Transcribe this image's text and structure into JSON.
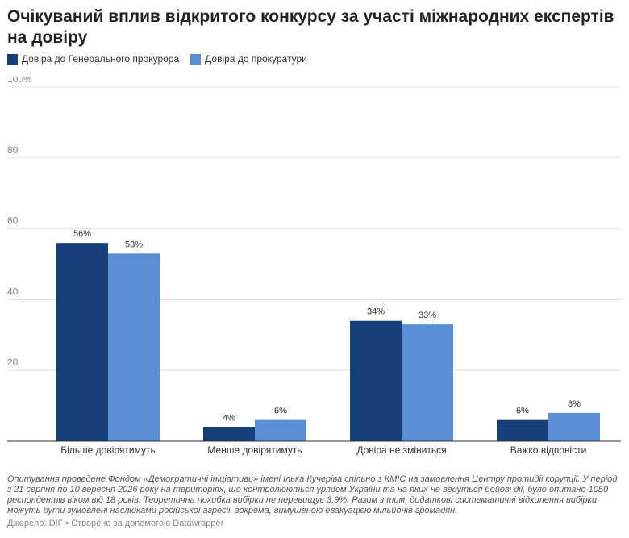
{
  "title": "Очікуваний вплив відкритого конкурсу за участі міжнародних експертів на довіру",
  "legend": [
    {
      "label": "Довіра до Генерального прокурора",
      "color": "#163f7a"
    },
    {
      "label": "Довіра до прокуратури",
      "color": "#5a8fd6"
    }
  ],
  "chart_data": {
    "type": "bar",
    "categories": [
      "Більше довірятимуть",
      "Менше довірятимуть",
      "Довіра не зміниться",
      "Важко відповісти"
    ],
    "series": [
      {
        "name": "Довіра до Генерального прокурора",
        "values": [
          56,
          4,
          34,
          6
        ],
        "labels": [
          "56%",
          "4%",
          "34%",
          "6%"
        ],
        "color": "#163f7a"
      },
      {
        "name": "Довіра до прокуратури",
        "values": [
          53,
          6,
          33,
          8
        ],
        "labels": [
          "53%",
          "6%",
          "33%",
          "8%"
        ],
        "color": "#5a8fd6"
      }
    ],
    "ylim": [
      0,
      100
    ],
    "yticks": [
      20,
      40,
      60,
      80,
      100
    ],
    "ytick_labels": [
      "20",
      "40",
      "60",
      "80",
      "100%"
    ],
    "grid": true,
    "legend_position": "top-left"
  },
  "notes": "Опитування проведене Фондом «Демократичні ініціативи» імені Ілька Кучеріва спільно з КМІС на замовлення Центру протидії корупції. У період з 21 серпня по 10 вересня 2026 року на територіях, що контролюються урядом України та на яких не ведуться бойові дії, було опитано 1050 респондентів віком від 18 років. Теоретична похибка вибірки не перевищує 3,9%. Разом з тим, додаткові систематичні відхилення вибірки можуть бути зумовлені наслідками російської агресії, зокрема, вимушеною евакуацією мільйонів громадян.",
  "source": "Джерело: DIF • Створено за допомогою Datawrapper"
}
